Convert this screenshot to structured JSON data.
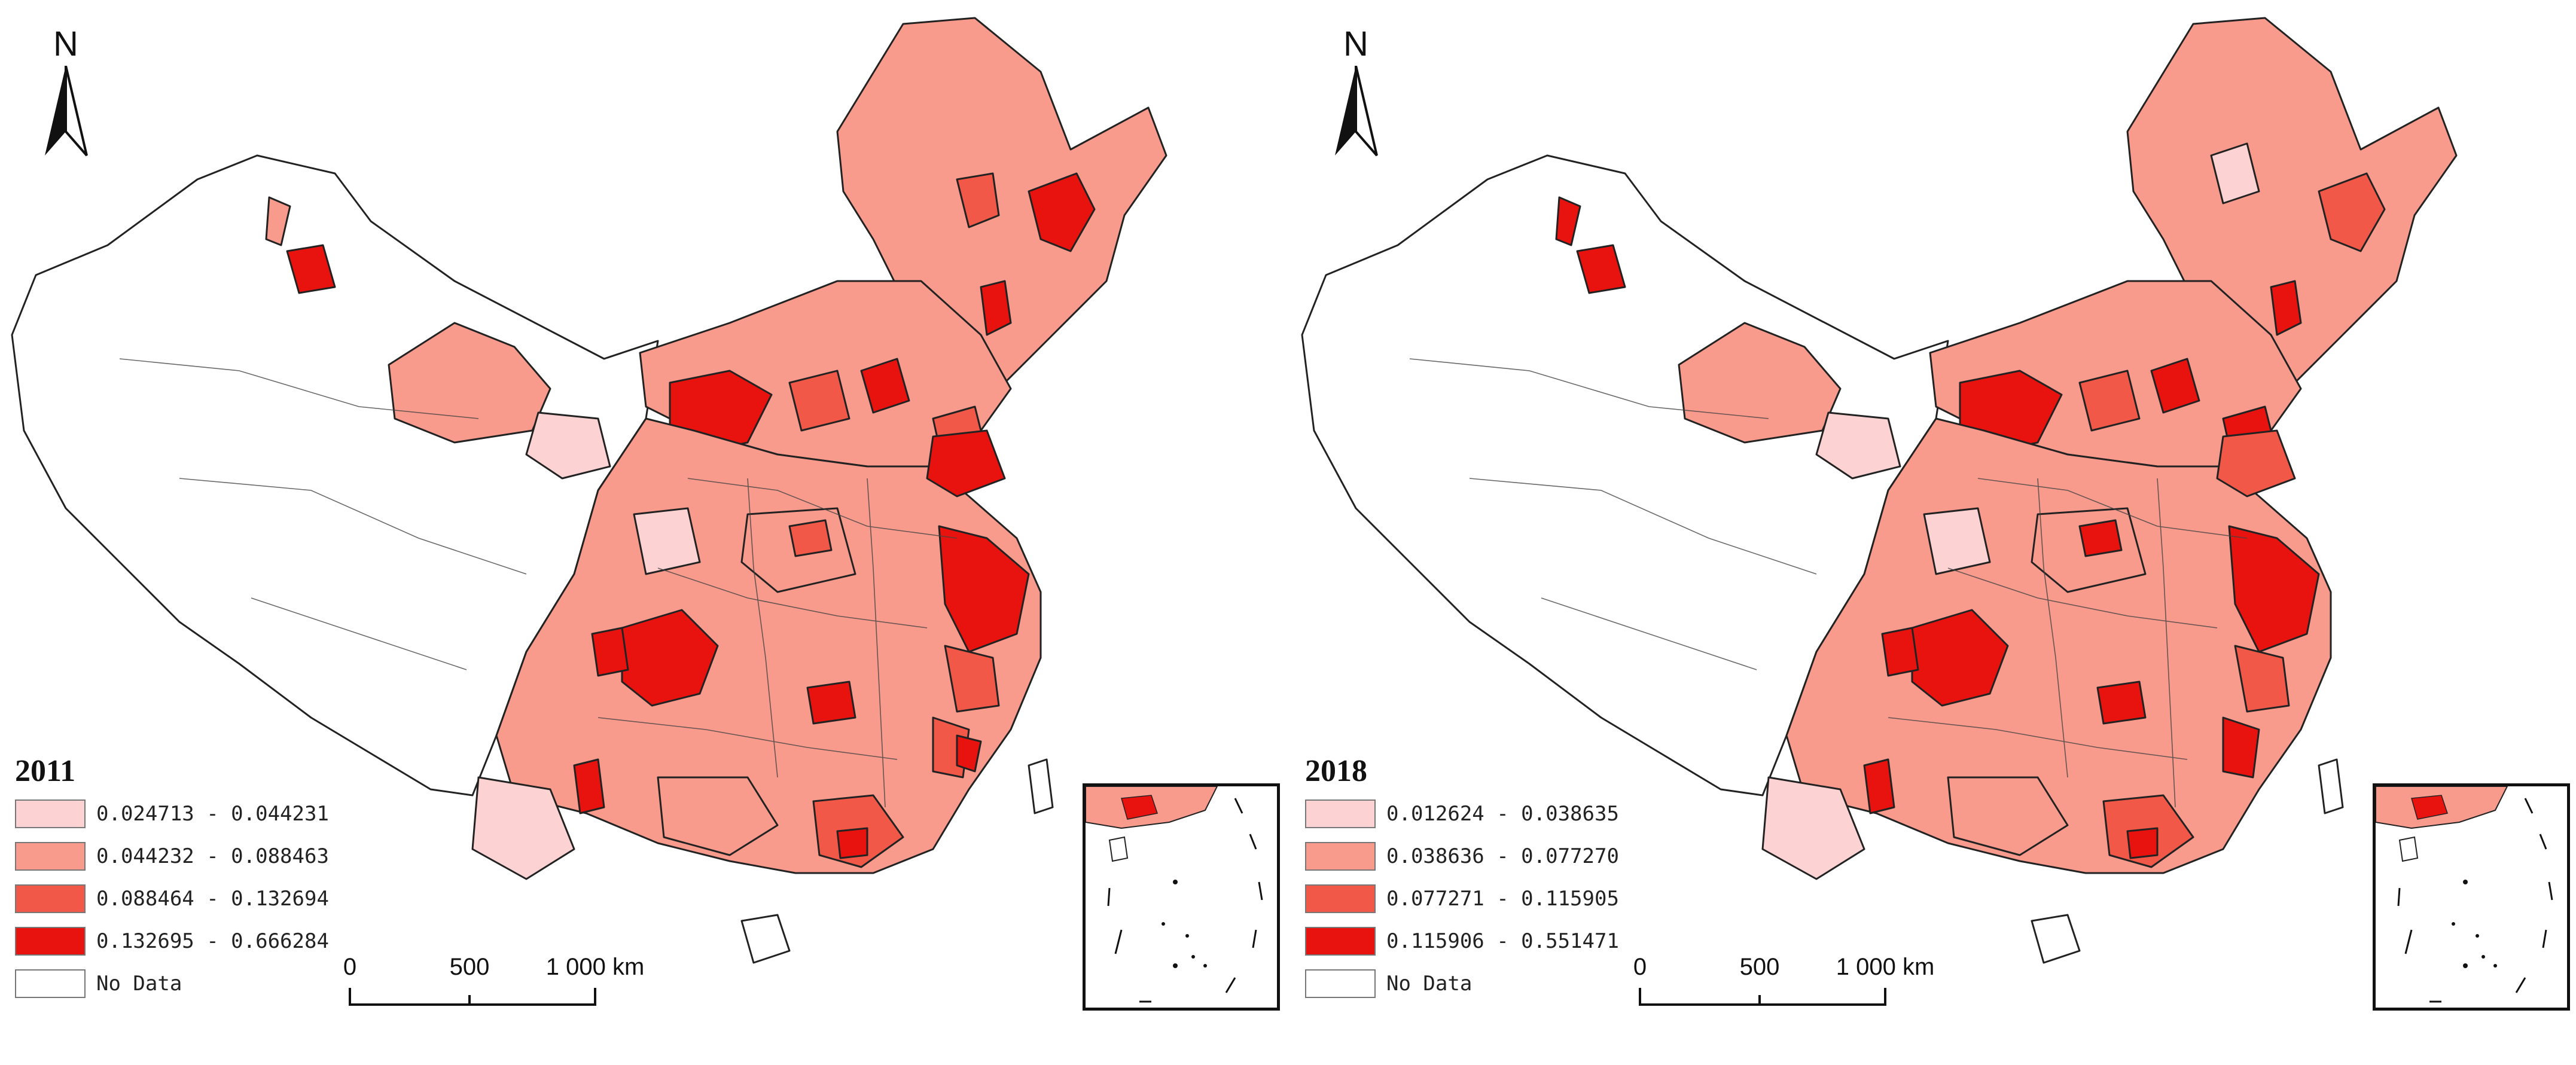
{
  "map_defs": {
    "colors": {
      "class1": "#fcd2d2",
      "class2": "#f89a8c",
      "class3": "#f25848",
      "class4": "#e8130e",
      "no_data": "#ffffff",
      "boundary": "#222222"
    }
  },
  "north_arrow": {
    "label": "N"
  },
  "scale_bar": {
    "ticks": [
      "0",
      "500",
      "1 000 km"
    ]
  },
  "panels": [
    {
      "year": "2011",
      "legend": [
        {
          "label": "0.024713 - 0.044231",
          "color": "#fcd2d2"
        },
        {
          "label": "0.044232 - 0.088463",
          "color": "#f89a8c"
        },
        {
          "label": "0.088464 - 0.132694",
          "color": "#f25848"
        },
        {
          "label": "0.132695 - 0.666284",
          "color": "#e8130e"
        },
        {
          "label": "No Data",
          "color": "#ffffff"
        }
      ]
    },
    {
      "year": "2018",
      "legend": [
        {
          "label": "0.012624 - 0.038635",
          "color": "#fcd2d2"
        },
        {
          "label": "0.038636 - 0.077270",
          "color": "#f89a8c"
        },
        {
          "label": "0.077271 - 0.115905",
          "color": "#f25848"
        },
        {
          "label": "0.115906 - 0.551471",
          "color": "#e8130e"
        },
        {
          "label": "No Data",
          "color": "#ffffff"
        }
      ]
    }
  ]
}
